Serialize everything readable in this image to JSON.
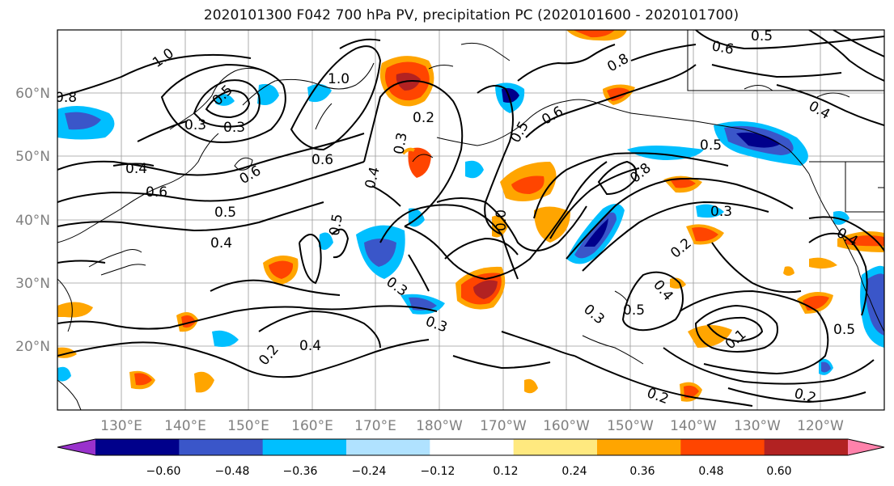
{
  "title": "2020101300 F042 700 hPa PV, precipitation PC (2020101600 - 2020101700)",
  "map": {
    "lon_labels": [
      "130°E",
      "140°E",
      "150°E",
      "160°E",
      "170°E",
      "180°W",
      "170°W",
      "160°W",
      "150°W",
      "140°W",
      "130°W",
      "120°W"
    ],
    "lat_labels": [
      "20°N",
      "30°N",
      "40°N",
      "50°N",
      "60°N"
    ],
    "contour_labels": [
      {
        "text": "0.8"
      },
      {
        "text": "1.0"
      },
      {
        "text": "0.3"
      },
      {
        "text": "0.5"
      },
      {
        "text": "0.3"
      },
      {
        "text": "1.0"
      },
      {
        "text": "0.2"
      },
      {
        "text": "0.3"
      },
      {
        "text": "0.6"
      },
      {
        "text": "0.4"
      },
      {
        "text": "0.4"
      },
      {
        "text": "0.6"
      },
      {
        "text": "0.6"
      },
      {
        "text": "0.5"
      },
      {
        "text": "0.4"
      },
      {
        "text": "0.5"
      },
      {
        "text": "0.0"
      },
      {
        "text": "0.3"
      },
      {
        "text": "0.3"
      },
      {
        "text": "0.2"
      },
      {
        "text": "0.4"
      },
      {
        "text": "0.8"
      },
      {
        "text": "0.6"
      },
      {
        "text": "0.5"
      },
      {
        "text": "0.5"
      },
      {
        "text": "0.6"
      },
      {
        "text": "0.4"
      },
      {
        "text": "0.5"
      },
      {
        "text": "0.8"
      },
      {
        "text": "0.3"
      },
      {
        "text": "0.2"
      },
      {
        "text": "0.4"
      },
      {
        "text": "0.3"
      },
      {
        "text": "0.5"
      },
      {
        "text": "0.5"
      },
      {
        "text": "0.2"
      },
      {
        "text": "0.2"
      },
      {
        "text": "0.1"
      },
      {
        "text": "0.4"
      }
    ]
  },
  "colorbar": {
    "ticks": [
      "−0.60",
      "−0.48",
      "−0.36",
      "−0.24",
      "−0.12",
      "0.12",
      "0.24",
      "0.36",
      "0.48",
      "0.60"
    ],
    "colors": [
      "#9932CC",
      "#00008B",
      "#3A56C9",
      "#00BFFF",
      "#B0E2FF",
      "#FFFFFF",
      "#FFE97F",
      "#FFA500",
      "#FF4500",
      "#B22222",
      "#FF82AB"
    ]
  }
}
